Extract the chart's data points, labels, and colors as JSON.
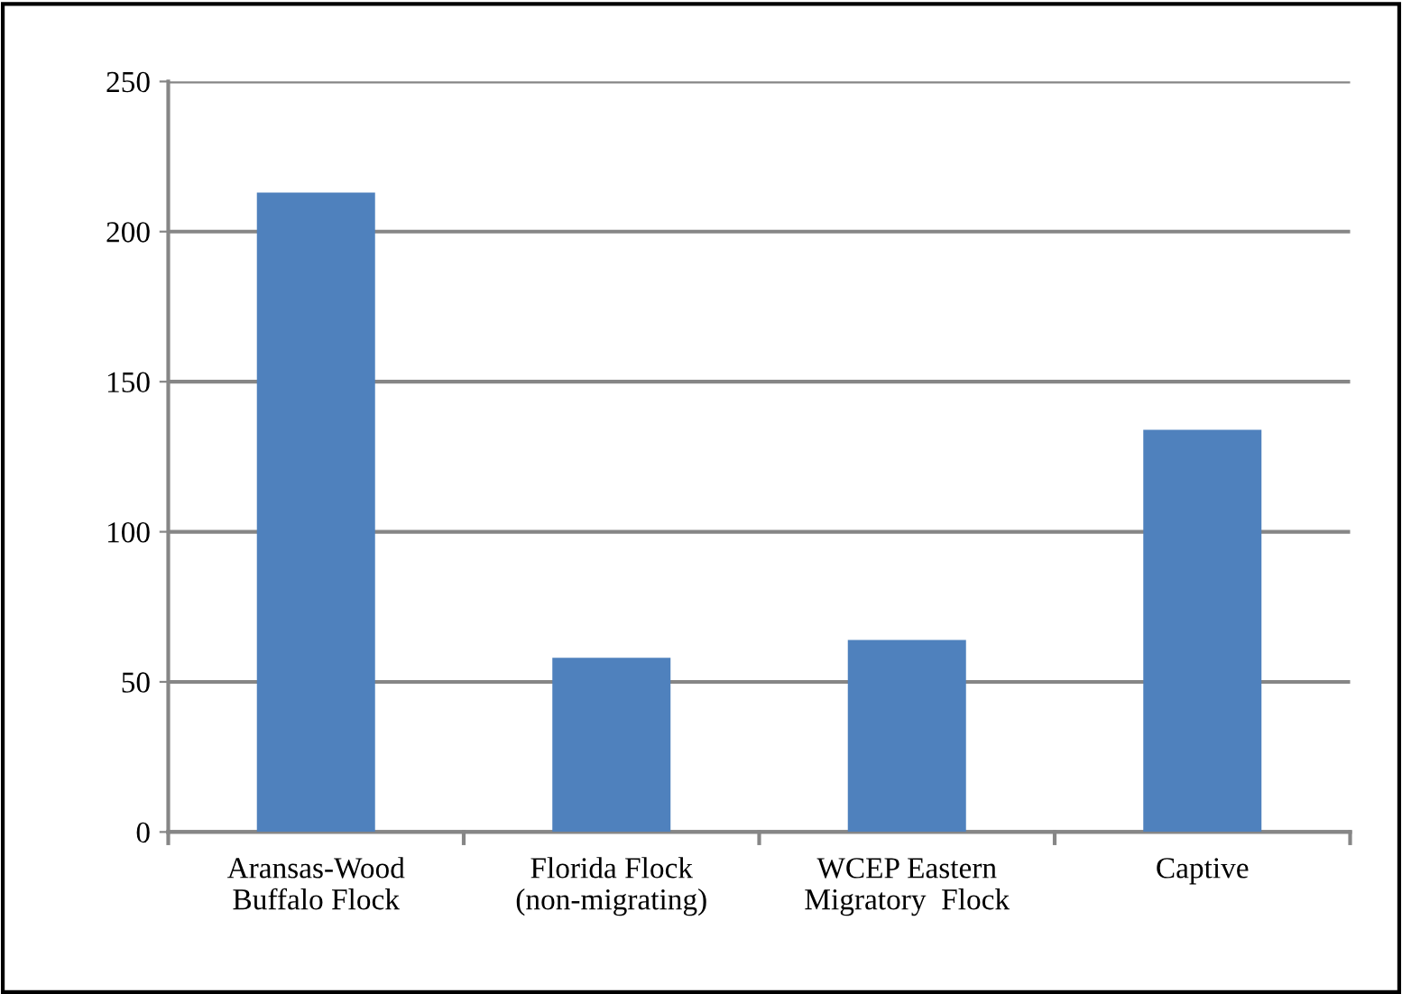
{
  "chart_data": {
    "type": "bar",
    "categories": [
      "Aransas-Wood\nBuffalo Flock",
      "Florida Flock\n(non-migrating)",
      "WCEP Eastern\nMigratory  Flock",
      "Captive"
    ],
    "values": [
      213,
      58,
      64,
      134
    ],
    "color": "#4f81bd",
    "ylim": [
      0,
      250
    ],
    "yticks": [
      0,
      50,
      100,
      150,
      200,
      250
    ],
    "grid": "y"
  }
}
